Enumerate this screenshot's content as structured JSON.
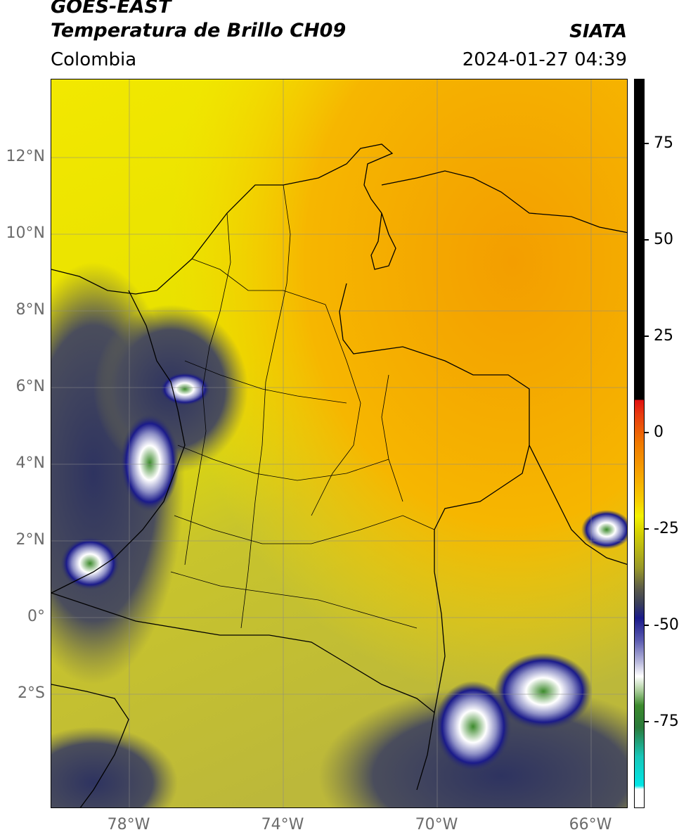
{
  "header": {
    "title_line1": "GOES-EAST",
    "title_line2": "Temperatura de Brillo CH09",
    "region": "Colombia",
    "organization": "SIATA",
    "timestamp": "2024-01-27 04:39"
  },
  "map": {
    "lat_labels": [
      "12°N",
      "10°N",
      "8°N",
      "6°N",
      "4°N",
      "2°N",
      "0°",
      "2°S"
    ],
    "lon_labels": [
      "78°W",
      "74°W",
      "70°W",
      "66°W"
    ]
  },
  "colorbar": {
    "labels": [
      "75",
      "50",
      "25",
      "0",
      "-25",
      "-50",
      "-75"
    ],
    "colors": {
      "hot": "#000000",
      "warm_red": "#e01010",
      "orange": "#f6a200",
      "yellow": "#f4f200",
      "olive": "#9a9a28",
      "dark": "#3a3f5a",
      "navy": "#1a1a8a",
      "white": "#ffffff",
      "green": "#3c8a2c",
      "teal": "#18c6b8",
      "cyan": "#00e6e6"
    }
  }
}
